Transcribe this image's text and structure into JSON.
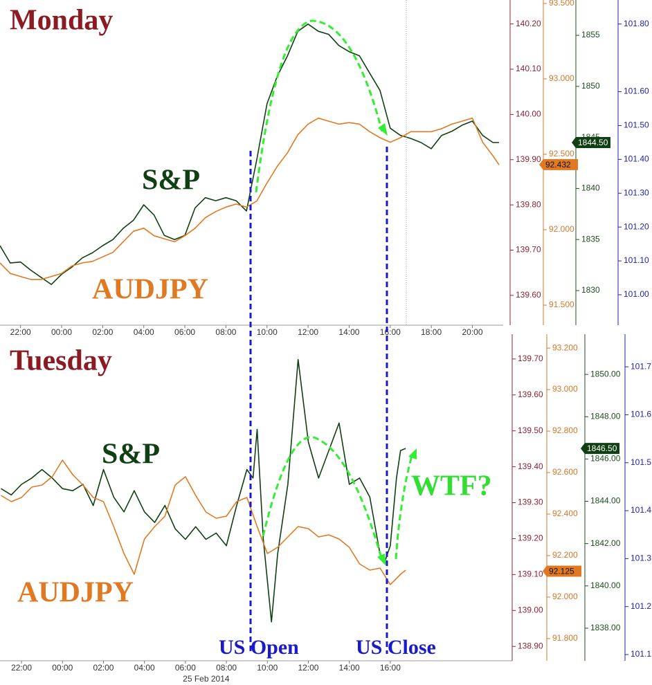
{
  "chart_data": [
    {
      "type": "line",
      "title": "Monday",
      "xlim": [
        21,
        45.5
      ],
      "xticks": [
        {
          "value": 22,
          "label": "22:00"
        },
        {
          "value": 24,
          "label": "00:00"
        },
        {
          "value": 26,
          "label": "02:00"
        },
        {
          "value": 28,
          "label": "04:00"
        },
        {
          "value": 30,
          "label": "06:00"
        },
        {
          "value": 32,
          "label": "08:00"
        },
        {
          "value": 34,
          "label": "10:00"
        },
        {
          "value": 36,
          "label": "12:00"
        },
        {
          "value": 38,
          "label": "14:00"
        },
        {
          "value": 40,
          "label": "16:00"
        },
        {
          "value": 42,
          "label": "18:00"
        },
        {
          "value": 44,
          "label": "20:00"
        }
      ],
      "axes": [
        {
          "color": "#8b2335",
          "ylim": [
            139.534,
            140.253
          ],
          "yticks": [
            {
              "value": 140.2,
              "label": "140.20"
            },
            {
              "value": 140.1,
              "label": "140.10"
            },
            {
              "value": 140.0,
              "label": "140.00"
            },
            {
              "value": 139.9,
              "label": "139.90"
            },
            {
              "value": 139.8,
              "label": "139.80"
            },
            {
              "value": 139.7,
              "label": "139.70"
            },
            {
              "value": 139.6,
              "label": "139.60"
            }
          ]
        },
        {
          "color": "#d2782a",
          "ylim": [
            91.367,
            93.523
          ],
          "yticks": [
            {
              "value": 93.5,
              "label": "93.500"
            },
            {
              "value": 93.0,
              "label": "93.000"
            },
            {
              "value": 92.5,
              "label": "92.500"
            },
            {
              "value": 92.0,
              "label": "92.000"
            },
            {
              "value": 91.5,
              "label": "91.500"
            }
          ]
        },
        {
          "color": "#1e4d1e",
          "ylim": [
            1826.61,
            1858.46
          ],
          "yticks": [
            1855,
            1850,
            1845,
            1840,
            1835,
            1830
          ]
        },
        {
          "color": "#2222aa",
          "ylim": [
            100.91,
            101.871
          ],
          "yticks": [
            {
              "value": 101.8,
              "label": "101.80"
            },
            {
              "value": 101.6,
              "label": "101.60"
            },
            {
              "value": 101.5,
              "label": "101.50"
            },
            {
              "value": 101.4,
              "label": "101.40"
            },
            {
              "value": 101.3,
              "label": "101.30"
            },
            {
              "value": 101.2,
              "label": "101.20"
            },
            {
              "value": 101.1,
              "label": "101.10"
            },
            {
              "value": 101.0,
              "label": "101.00"
            }
          ]
        }
      ],
      "series": [
        {
          "name": "S&P",
          "color": "#0f3f12",
          "axis": 2,
          "last_value": {
            "value": 1844.5,
            "label": "1844.50"
          },
          "x": [
            21,
            21.5,
            22,
            22.5,
            23,
            23.5,
            24,
            24.5,
            25,
            25.5,
            26,
            26.5,
            27,
            27.5,
            28,
            28.5,
            29,
            29.5,
            30,
            30.5,
            31,
            31.5,
            32,
            32.5,
            33,
            33.5,
            34,
            34.5,
            35,
            35.5,
            36,
            36.5,
            37,
            37.5,
            38,
            38.5,
            39,
            39.5,
            40,
            40.5,
            41,
            41.5,
            42,
            42.5,
            43,
            43.5,
            44,
            44.5,
            45,
            45.3
          ],
          "values": [
            1834.4,
            1832.7,
            1832.8,
            1832.0,
            1831.3,
            1830.6,
            1831.6,
            1832.3,
            1833.2,
            1833.7,
            1834.4,
            1835.0,
            1836.1,
            1836.9,
            1838.4,
            1837.4,
            1835.4,
            1835.0,
            1835.4,
            1838.1,
            1839.1,
            1838.8,
            1839.1,
            1838.8,
            1837.8,
            1842.8,
            1848.3,
            1851.0,
            1853.0,
            1855.4,
            1856.1,
            1855.4,
            1855.1,
            1854.0,
            1853.4,
            1853.0,
            1851.3,
            1849.6,
            1845.9,
            1845.2,
            1844.9,
            1844.5,
            1843.9,
            1845.2,
            1845.6,
            1846.2,
            1846.6,
            1845.2,
            1844.5,
            1844.5
          ]
        },
        {
          "name": "AUDJPY",
          "color": "#e07a22",
          "axis": 1,
          "last_value": 92.432,
          "x": [
            21,
            21.5,
            22,
            22.5,
            23,
            23.5,
            24,
            24.5,
            25,
            25.5,
            26,
            26.5,
            27,
            27.5,
            28,
            28.5,
            29,
            29.5,
            30,
            30.5,
            31,
            31.5,
            32,
            32.5,
            33,
            33.5,
            34,
            34.5,
            35,
            35.5,
            36,
            36.5,
            37,
            37.5,
            38,
            38.5,
            39,
            39.5,
            40,
            40.5,
            41,
            41.5,
            42,
            42.5,
            43,
            43.5,
            44,
            44.5,
            45,
            45.3
          ],
          "values": [
            91.78,
            91.71,
            91.69,
            91.67,
            91.67,
            91.69,
            91.71,
            91.76,
            91.78,
            91.79,
            91.82,
            91.85,
            91.92,
            91.99,
            92.01,
            91.96,
            91.94,
            91.92,
            91.96,
            92.01,
            92.08,
            92.12,
            92.15,
            92.17,
            92.15,
            92.19,
            92.31,
            92.42,
            92.51,
            92.63,
            92.7,
            92.74,
            92.72,
            92.7,
            92.71,
            92.7,
            92.65,
            92.61,
            92.58,
            92.61,
            92.65,
            92.65,
            92.65,
            92.67,
            92.7,
            92.72,
            92.74,
            92.58,
            92.49,
            92.43
          ]
        }
      ]
    },
    {
      "type": "line",
      "title": "Tuesday",
      "date_label": "25 Feb 2014",
      "xlim": [
        20.95,
        45.95
      ],
      "xticks": [
        {
          "value": 22,
          "label": "22:00"
        },
        {
          "value": 24,
          "label": "00:00"
        },
        {
          "value": 26,
          "label": "02:00"
        },
        {
          "value": 28,
          "label": "04:00"
        },
        {
          "value": 30,
          "label": "06:00"
        },
        {
          "value": 32,
          "label": "08:00"
        },
        {
          "value": 34,
          "label": "10:00"
        },
        {
          "value": 36,
          "label": "12:00"
        },
        {
          "value": 38,
          "label": "14:00"
        },
        {
          "value": 40,
          "label": "16:00"
        }
      ],
      "axes": [
        {
          "color": "#8b2335",
          "ylim": [
            138.86,
            139.769
          ],
          "yticks": [
            {
              "value": 139.7,
              "label": "139.70"
            },
            {
              "value": 139.6,
              "label": "139.60"
            },
            {
              "value": 139.5,
              "label": "139.50"
            },
            {
              "value": 139.4,
              "label": "139.40"
            },
            {
              "value": 139.3,
              "label": "139.30"
            },
            {
              "value": 139.2,
              "label": "139.20"
            },
            {
              "value": 139.1,
              "label": "139.10"
            },
            {
              "value": 139.0,
              "label": "139.00"
            },
            {
              "value": 138.9,
              "label": "138.90"
            }
          ]
        },
        {
          "color": "#d2782a",
          "ylim": [
            91.693,
            93.267
          ],
          "yticks": [
            {
              "value": 93.2,
              "label": "93.200"
            },
            {
              "value": 93.0,
              "label": "93.000"
            },
            {
              "value": 92.8,
              "label": "92.800"
            },
            {
              "value": 92.6,
              "label": "92.600"
            },
            {
              "value": 92.4,
              "label": "92.400"
            },
            {
              "value": 92.2,
              "label": "92.200"
            },
            {
              "value": 92.0,
              "label": "92.000"
            },
            {
              "value": 91.8,
              "label": "91.800"
            }
          ]
        },
        {
          "color": "#1e4d1e",
          "ylim": [
            1836.46,
            1851.9
          ],
          "yticks": [
            {
              "value": 1850,
              "label": "1850.00"
            },
            {
              "value": 1848,
              "label": "1848.00"
            },
            {
              "value": 1846,
              "label": "1846.00"
            },
            {
              "value": 1844,
              "label": "1844.00"
            },
            {
              "value": 1842,
              "label": "1842.00"
            },
            {
              "value": 1840,
              "label": "1840.00"
            },
            {
              "value": 1838,
              "label": "1838.00"
            }
          ]
        },
        {
          "color": "#2222aa",
          "ylim": [
            101.087,
            101.768
          ],
          "yticks": [
            101.7,
            101.6,
            101.5,
            101.4,
            101.3,
            101.2,
            101.1
          ]
        }
      ],
      "series": [
        {
          "name": "S&P",
          "color": "#0f3f12",
          "axis": 2,
          "last_value": {
            "value": 1846.5,
            "label": "1846.50"
          },
          "x": [
            21,
            21.5,
            22,
            22.5,
            23,
            23.5,
            24,
            24.5,
            25,
            25.5,
            26,
            26.5,
            27,
            27.5,
            28,
            28.5,
            29,
            29.5,
            30,
            30.5,
            31,
            31.5,
            32,
            32.5,
            33,
            33.3,
            33.5,
            33.8,
            34.2,
            34.5,
            35,
            35.5,
            36,
            36.5,
            37,
            37.5,
            38,
            38.5,
            39,
            39.5,
            39.75,
            40,
            40.3,
            40.5,
            40.75
          ],
          "values": [
            1844.6,
            1844.3,
            1844.8,
            1845.1,
            1845.5,
            1845.1,
            1844.6,
            1844.5,
            1844.8,
            1843.8,
            1845.5,
            1844.2,
            1843.5,
            1844.5,
            1843.5,
            1843.0,
            1843.8,
            1842.7,
            1842.2,
            1842.8,
            1842.2,
            1842.5,
            1841.9,
            1843.8,
            1845.5,
            1845.1,
            1847.4,
            1842.2,
            1838.3,
            1841.5,
            1844.8,
            1850.7,
            1846.8,
            1845.1,
            1846.4,
            1847.7,
            1844.8,
            1845.1,
            1844.2,
            1841.5,
            1841.2,
            1841.9,
            1845.1,
            1846.4,
            1846.5
          ]
        },
        {
          "name": "AUDJPY",
          "color": "#e07a22",
          "axis": 1,
          "last_value": 92.125,
          "x": [
            21,
            21.5,
            22,
            22.5,
            23,
            23.5,
            24,
            24.5,
            25,
            25.5,
            26,
            26.5,
            27,
            27.5,
            28,
            28.5,
            29,
            29.5,
            30,
            30.5,
            31,
            31.5,
            32,
            32.5,
            33,
            33.5,
            34,
            34.5,
            35,
            35.5,
            36,
            36.5,
            37,
            37.5,
            38,
            38.5,
            39,
            39.5,
            40,
            40.5,
            40.75
          ],
          "values": [
            92.49,
            92.46,
            92.48,
            92.53,
            92.54,
            92.58,
            92.66,
            92.59,
            92.54,
            92.48,
            92.46,
            92.34,
            92.21,
            92.11,
            92.28,
            92.34,
            92.39,
            92.54,
            92.58,
            92.49,
            92.41,
            92.38,
            92.39,
            92.46,
            92.48,
            92.34,
            92.21,
            92.24,
            92.29,
            92.34,
            92.33,
            92.29,
            92.3,
            92.28,
            92.24,
            92.16,
            92.13,
            92.14,
            92.06,
            92.11,
            92.13
          ]
        }
      ]
    }
  ],
  "annotations": [
    "US Open",
    "US Close",
    "WTF?"
  ]
}
